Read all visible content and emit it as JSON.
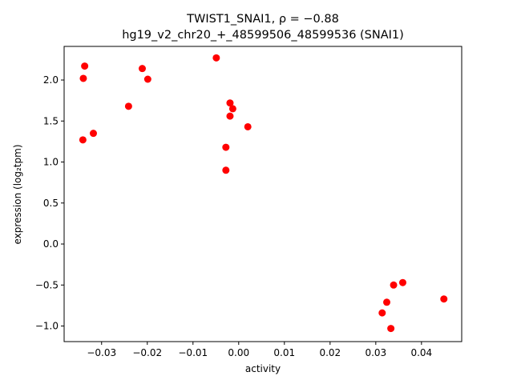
{
  "chart_data": {
    "type": "scatter",
    "title_line1": "TWIST1_SNAI1, ρ = −0.88",
    "title_line2": "hg19_v2_chr20_+_48599506_48599536 (SNAI1)",
    "xlabel": "activity",
    "ylabel": "expression (log₂tpm)",
    "xlim": [
      -0.0382,
      0.0488
    ],
    "ylim": [
      -1.19,
      2.41
    ],
    "x_ticks": [
      -0.03,
      -0.02,
      -0.01,
      0.0,
      0.01,
      0.02,
      0.03,
      0.04
    ],
    "x_tick_labels": [
      "−0.03",
      "−0.02",
      "−0.01",
      "0.00",
      "0.01",
      "0.02",
      "0.03",
      "0.04"
    ],
    "y_ticks": [
      -1.0,
      -0.5,
      0.0,
      0.5,
      1.0,
      1.5,
      2.0
    ],
    "y_tick_labels": [
      "−1.0",
      "−0.5",
      "0.0",
      "0.5",
      "1.0",
      "1.5",
      "2.0"
    ],
    "grid": false,
    "marker_color": "#ff0000",
    "points": [
      {
        "x": -0.0337,
        "y": 2.17
      },
      {
        "x": -0.034,
        "y": 2.02
      },
      {
        "x": -0.0341,
        "y": 1.27
      },
      {
        "x": -0.0318,
        "y": 1.35
      },
      {
        "x": -0.0241,
        "y": 1.68
      },
      {
        "x": -0.0211,
        "y": 2.14
      },
      {
        "x": -0.0199,
        "y": 2.01
      },
      {
        "x": -0.0049,
        "y": 2.27
      },
      {
        "x": -0.0019,
        "y": 1.72
      },
      {
        "x": -0.0013,
        "y": 1.65
      },
      {
        "x": -0.0019,
        "y": 1.56
      },
      {
        "x": 0.002,
        "y": 1.43
      },
      {
        "x": -0.0028,
        "y": 1.18
      },
      {
        "x": -0.0028,
        "y": 0.9
      },
      {
        "x": 0.0359,
        "y": -0.47
      },
      {
        "x": 0.0339,
        "y": -0.5
      },
      {
        "x": 0.0324,
        "y": -0.71
      },
      {
        "x": 0.0314,
        "y": -0.84
      },
      {
        "x": 0.0449,
        "y": -0.67
      },
      {
        "x": 0.0333,
        "y": -1.03
      }
    ]
  }
}
